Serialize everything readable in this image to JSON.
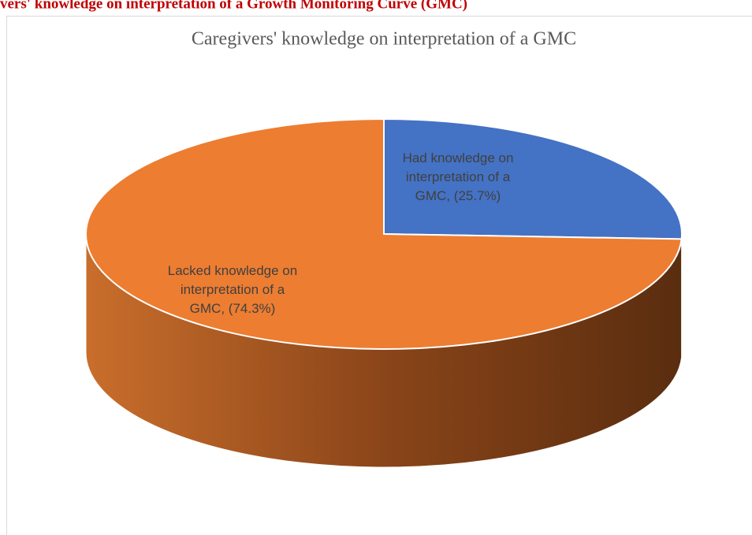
{
  "heading": "vers' knowledge on interpretation of a Growth Monitoring Curve (GMC)",
  "chart_data": {
    "type": "pie",
    "title": "Caregivers' knowledge on interpretation of a GMC",
    "values": [
      25.7,
      74.3
    ],
    "value_labels": [
      "Had knowledge on interpretation of a GMC, (25.7%)",
      "Lacked knowledge on interpretation of a GMC, (74.3%)"
    ],
    "colors": [
      "#4472c4",
      "#ed7d31"
    ]
  }
}
